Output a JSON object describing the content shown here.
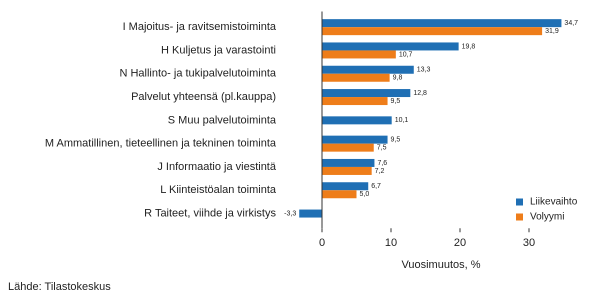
{
  "chart_data": {
    "type": "bar",
    "orientation": "horizontal",
    "categories": [
      "I Majoitus- ja ravitsemistoiminta",
      "H Kuljetus ja varastointi",
      "N Hallinto- ja tukipalvelutoiminta",
      "Palvelut yhteensä (pl.kauppa)",
      "S Muu palvelutoiminta",
      "M Ammatillinen, tieteellinen ja tekninen toiminta",
      "J Informaatio ja viestintä",
      "L Kiinteistöalan toiminta",
      "R Taiteet, viihde ja virkistys"
    ],
    "series": [
      {
        "name": "Liikevaihto",
        "color": "#1f6fb4",
        "values": [
          34.7,
          19.8,
          13.3,
          12.8,
          10.1,
          9.5,
          7.6,
          6.7,
          -3.3
        ],
        "value_labels": [
          "34,7",
          "19,8",
          "13,3",
          "12,8",
          "10,1",
          "9,5",
          "7,6",
          "6,7",
          "-3,3"
        ]
      },
      {
        "name": "Volyymi",
        "color": "#ee7d1a",
        "values": [
          31.9,
          10.7,
          9.8,
          9.5,
          null,
          7.5,
          7.2,
          5.0,
          null
        ],
        "value_labels": [
          "31,9",
          "10,7",
          "9,8",
          "9,5",
          null,
          "7,5",
          "7,2",
          "5,0",
          null
        ]
      }
    ],
    "x_label": "Vuosimuutos, %",
    "source": "Lähde: Tilastokeskus",
    "xlim": [
      -4,
      37
    ],
    "xticks": [
      0,
      10,
      20,
      30
    ],
    "legend": "lower right",
    "grid": false
  }
}
